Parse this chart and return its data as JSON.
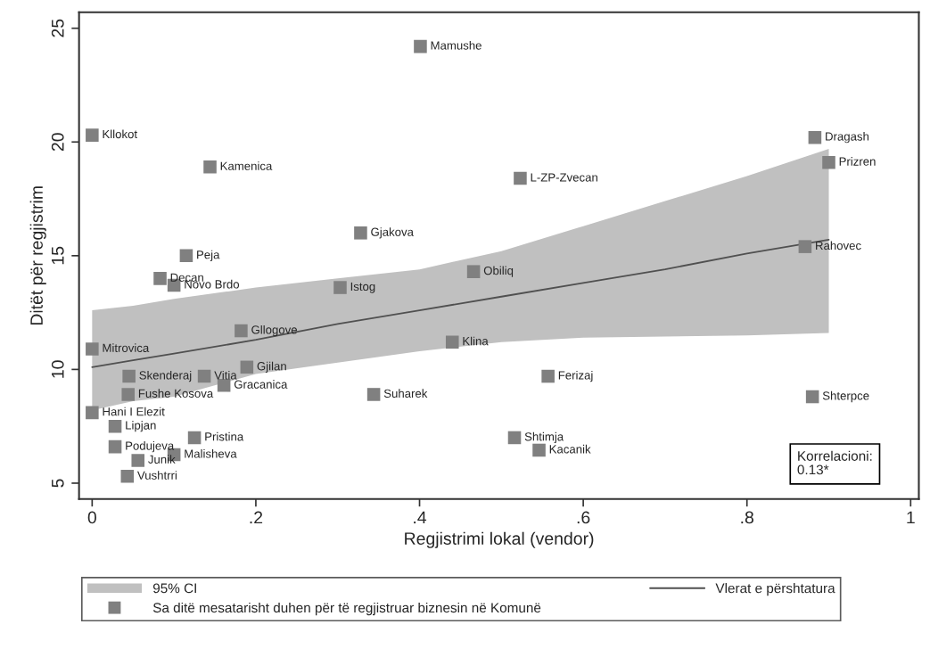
{
  "chart_data": {
    "type": "scatter",
    "xlabel": "Regjistrimi lokal (vendor)",
    "ylabel": "Ditët për regjistrim",
    "xlim": [
      -0.016,
      1.01
    ],
    "ylim": [
      4.3,
      25.7
    ],
    "xticks": [
      0,
      {
        "value": 0.2,
        "label": ".2"
      },
      {
        "value": 0.4,
        "label": ".4"
      },
      {
        "value": 0.6,
        "label": ".6"
      },
      {
        "value": 0.8,
        "label": ".8"
      },
      1
    ],
    "yticks": [
      5,
      10,
      15,
      20,
      25
    ],
    "grid": false,
    "legend": "bottom",
    "series": [
      {
        "type": "area",
        "name": "95% CI",
        "color": "#c0c0c0"
      },
      {
        "type": "line",
        "name": "Vlerat e përshtatura",
        "color": "#505050",
        "line_style": "solid",
        "x": [
          0,
          0.05,
          0.1,
          0.2,
          0.3,
          0.4,
          0.5,
          0.6,
          0.7,
          0.8,
          0.9
        ],
        "values": [
          10.1,
          10.4,
          10.7,
          11.3,
          12.0,
          12.6,
          13.2,
          13.8,
          14.4,
          15.1,
          15.7
        ],
        "lower": [
          8.2,
          8.6,
          8.8,
          9.8,
          10.3,
          10.8,
          11.2,
          11.4,
          11.45,
          11.5,
          11.6
        ],
        "upper": [
          12.6,
          12.8,
          13.1,
          13.6,
          14.0,
          14.4,
          15.2,
          16.3,
          17.4,
          18.5,
          19.7
        ]
      },
      {
        "name": "Sa ditë mesatarisht duhen për të regjistruar biznesin në Komunë",
        "color": "#808080",
        "marker": "square",
        "x": [
          0.401,
          0,
          0.144,
          0.328,
          0.115,
          0.083,
          0.1,
          0.303,
          0.466,
          0.182,
          0,
          0.44,
          0.189,
          0.045,
          0.137,
          0.161,
          0.044,
          0.344,
          0,
          0.028,
          0.125,
          0.028,
          0.1,
          0.056,
          0.043,
          0.557,
          0.88,
          0.516,
          0.546,
          0.883,
          0.9,
          0.523,
          0.871
        ],
        "values": [
          24.2,
          20.3,
          18.9,
          16.0,
          15.0,
          14.0,
          13.7,
          13.6,
          14.3,
          11.7,
          10.9,
          11.2,
          10.1,
          9.7,
          9.7,
          9.3,
          8.9,
          8.9,
          8.1,
          7.5,
          7.0,
          6.6,
          6.25,
          6.0,
          5.3,
          9.7,
          8.8,
          7.0,
          6.45,
          20.2,
          19.1,
          18.4,
          15.4
        ]
      }
    ],
    "annotations": [
      {
        "text": "Mamushe",
        "x": 0.401,
        "y": 24.2
      },
      {
        "text": "Kllokot",
        "x": 0,
        "y": 20.3
      },
      {
        "text": "Kamenica",
        "x": 0.144,
        "y": 18.9
      },
      {
        "text": "Gjakova",
        "x": 0.328,
        "y": 16.0
      },
      {
        "text": "Peja",
        "x": 0.115,
        "y": 15.0
      },
      {
        "text": "Decan",
        "x": 0.083,
        "y": 14.0
      },
      {
        "text": "Novo Brdo",
        "x": 0.1,
        "y": 13.7
      },
      {
        "text": "Istog",
        "x": 0.303,
        "y": 13.6
      },
      {
        "text": "Obiliq",
        "x": 0.466,
        "y": 14.3
      },
      {
        "text": "Gllogove",
        "x": 0.182,
        "y": 11.7
      },
      {
        "text": "Mitrovica",
        "x": 0,
        "y": 10.9
      },
      {
        "text": "Klina",
        "x": 0.44,
        "y": 11.2
      },
      {
        "text": "Gjilan",
        "x": 0.189,
        "y": 10.1
      },
      {
        "text": "Skenderaj",
        "x": 0.045,
        "y": 9.7
      },
      {
        "text": "Vitia",
        "x": 0.137,
        "y": 9.7
      },
      {
        "text": "Gracanica",
        "x": 0.161,
        "y": 9.3
      },
      {
        "text": "Fushe Kosova",
        "x": 0.044,
        "y": 8.9
      },
      {
        "text": "Suharek",
        "x": 0.344,
        "y": 8.9
      },
      {
        "text": "Hani I Elezit",
        "x": 0,
        "y": 8.1
      },
      {
        "text": "Lipjan",
        "x": 0.028,
        "y": 7.5
      },
      {
        "text": "Pristina",
        "x": 0.125,
        "y": 7.0
      },
      {
        "text": "Podujeva",
        "x": 0.028,
        "y": 6.6
      },
      {
        "text": "Malisheva",
        "x": 0.1,
        "y": 6.25
      },
      {
        "text": "Junik",
        "x": 0.056,
        "y": 6.0
      },
      {
        "text": "Vushtrri",
        "x": 0.043,
        "y": 5.3
      },
      {
        "text": "Ferizaj",
        "x": 0.557,
        "y": 9.7
      },
      {
        "text": "Shterpce",
        "x": 0.88,
        "y": 8.8
      },
      {
        "text": "Shtimja",
        "x": 0.516,
        "y": 7.0
      },
      {
        "text": "Kacanik",
        "x": 0.546,
        "y": 6.45
      },
      {
        "text": "Dragash",
        "x": 0.883,
        "y": 20.2
      },
      {
        "text": "Prizren",
        "x": 0.9,
        "y": 19.1
      },
      {
        "text": "L-ZP-Zvecan",
        "x": 0.523,
        "y": 18.4
      },
      {
        "text": "Rahovec",
        "x": 0.871,
        "y": 15.4
      },
      "Korrelacioni:\n0.13*"
    ]
  }
}
